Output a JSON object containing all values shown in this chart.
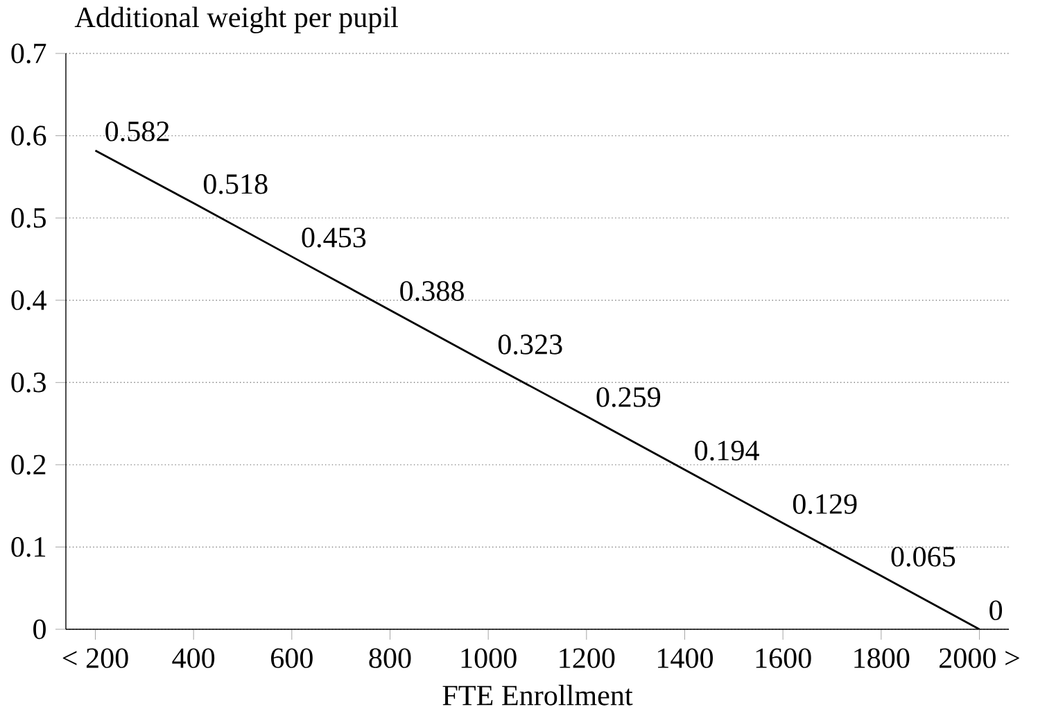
{
  "chart_data": {
    "type": "line",
    "ylabel": "Additional weight per pupil",
    "xlabel": "FTE Enrollment",
    "categories": [
      "< 200",
      "400",
      "600",
      "800",
      "1000",
      "1200",
      "1400",
      "1600",
      "1800",
      "2000 >"
    ],
    "values": [
      0.582,
      0.518,
      0.453,
      0.388,
      0.323,
      0.259,
      0.194,
      0.129,
      0.065,
      0
    ],
    "color": "#000000",
    "ylim": [
      0,
      0.7
    ],
    "yticks": [
      0,
      0.1,
      0.2,
      0.3,
      0.4,
      0.5,
      0.6,
      0.7
    ],
    "grid": "y",
    "data_labels": true,
    "marker": "none",
    "line_style": "solid"
  }
}
